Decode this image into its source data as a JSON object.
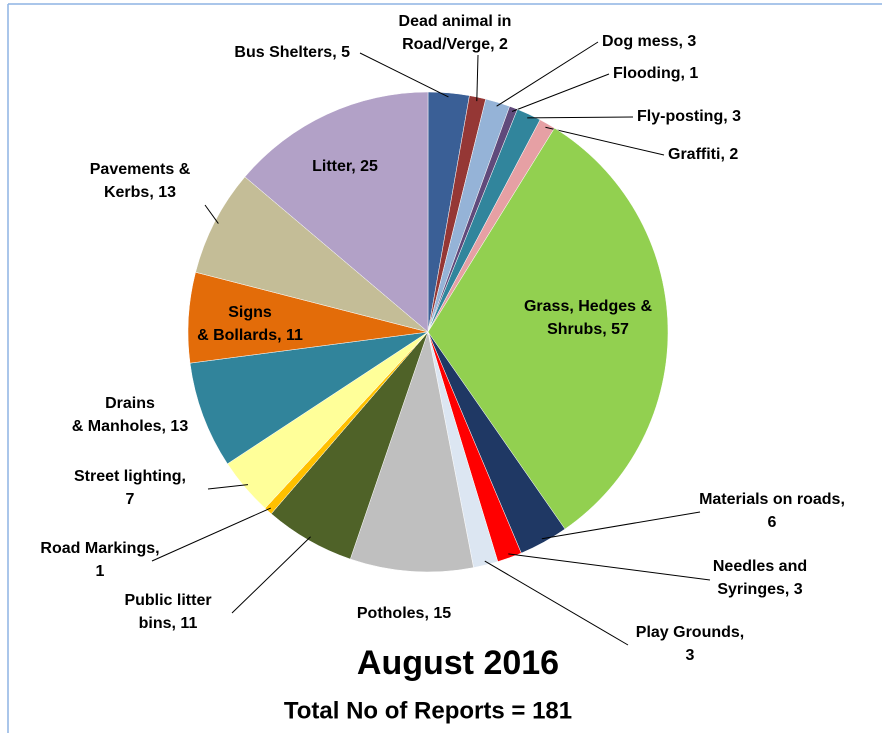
{
  "chart_data": {
    "type": "pie",
    "title": "August 2016",
    "subtitle": "Total No of Reports = 181",
    "values": [
      5,
      2,
      3,
      1,
      3,
      2,
      57,
      6,
      3,
      3,
      15,
      11,
      1,
      7,
      13,
      11,
      13,
      25
    ],
    "value_labels": [
      "Bus Shelters, 5",
      "Dead animal in Road/Verge, 2",
      "Dog mess, 3",
      "Flooding, 1",
      "Fly-posting, 3",
      "Graffiti, 2",
      "Grass, Hedges & Shrubs, 57",
      "Materials on roads, 6",
      "Needles and Syringes, 3",
      "Play Grounds, 3",
      "Potholes, 15",
      "Public litter bins, 11",
      "Road Markings, 1",
      "Street lighting, 7",
      "Drains & Manholes, 13",
      "Signs & Bollards, 11",
      "Pavements & Kerbs, 13",
      "Litter, 25"
    ],
    "colors": [
      "#3a5f96",
      "#953735",
      "#95b3d7",
      "#604a7b",
      "#31859c",
      "#e6a0a4",
      "#92d050",
      "#1f3864",
      "#ff0000",
      "#dce6f2",
      "#bfbfbf",
      "#4f6228",
      "#ffc000",
      "#ffff99",
      "#31849b",
      "#e36c09",
      "#c4bd97",
      "#b2a1c7"
    ]
  }
}
